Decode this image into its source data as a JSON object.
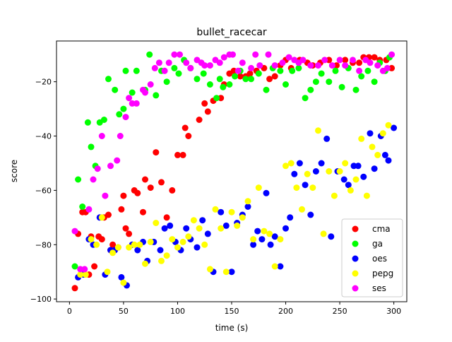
{
  "chart_data": {
    "type": "scatter",
    "title": "bullet_racecar",
    "xlabel": "time (s)",
    "ylabel": "score",
    "xlim": [
      -12,
      312
    ],
    "ylim": [
      -101,
      -5
    ],
    "xticks": [
      0,
      50,
      100,
      150,
      200,
      250,
      300
    ],
    "yticks": [
      -100,
      -80,
      -60,
      -40,
      -20
    ],
    "xtick_labels": [
      "0",
      "50",
      "100",
      "150",
      "200",
      "250",
      "300"
    ],
    "ytick_labels": [
      "−100",
      "−80",
      "−60",
      "−40",
      "−20"
    ],
    "legend_position": "lower-right",
    "series": [
      {
        "name": "cma",
        "color": "#ff0000",
        "points": [
          [
            5,
            -96
          ],
          [
            8,
            -76
          ],
          [
            12,
            -68
          ],
          [
            15,
            -68
          ],
          [
            18,
            -91
          ],
          [
            20,
            -77
          ],
          [
            23,
            -88
          ],
          [
            27,
            -77
          ],
          [
            30,
            -78
          ],
          [
            32,
            -70
          ],
          [
            36,
            -69
          ],
          [
            38,
            -82
          ],
          [
            40,
            -80
          ],
          [
            45,
            -81
          ],
          [
            48,
            -67
          ],
          [
            50,
            -62
          ],
          [
            52,
            -74
          ],
          [
            55,
            -76
          ],
          [
            60,
            -60
          ],
          [
            63,
            -61
          ],
          [
            68,
            -68
          ],
          [
            70,
            -56
          ],
          [
            75,
            -59
          ],
          [
            80,
            -46
          ],
          [
            85,
            -57
          ],
          [
            90,
            -70
          ],
          [
            95,
            -60
          ],
          [
            100,
            -47
          ],
          [
            105,
            -47
          ],
          [
            107,
            -37
          ],
          [
            110,
            -40
          ],
          [
            120,
            -34
          ],
          [
            125,
            -28
          ],
          [
            128,
            -31
          ],
          [
            133,
            -27
          ],
          [
            140,
            -26
          ],
          [
            143,
            -21
          ],
          [
            148,
            -17
          ],
          [
            152,
            -16
          ],
          [
            158,
            -18
          ],
          [
            163,
            -18
          ],
          [
            167,
            -17
          ],
          [
            173,
            -16
          ],
          [
            180,
            -15
          ],
          [
            185,
            -19
          ],
          [
            190,
            -18
          ],
          [
            195,
            -14
          ],
          [
            200,
            -12
          ],
          [
            205,
            -15
          ],
          [
            213,
            -12
          ],
          [
            220,
            -13
          ],
          [
            225,
            -14
          ],
          [
            232,
            -13
          ],
          [
            240,
            -12
          ],
          [
            247,
            -14
          ],
          [
            255,
            -12
          ],
          [
            262,
            -13
          ],
          [
            268,
            -13
          ],
          [
            272,
            -11
          ],
          [
            277,
            -11
          ],
          [
            282,
            -11
          ],
          [
            287,
            -12
          ],
          [
            293,
            -12
          ],
          [
            298,
            -15
          ]
        ]
      },
      {
        "name": "ga",
        "color": "#00ff00",
        "points": [
          [
            5,
            -88
          ],
          [
            8,
            -56
          ],
          [
            12,
            -66
          ],
          [
            17,
            -35
          ],
          [
            20,
            -44
          ],
          [
            24,
            -51
          ],
          [
            28,
            -35
          ],
          [
            32,
            -34
          ],
          [
            36,
            -19
          ],
          [
            42,
            -23
          ],
          [
            46,
            -32
          ],
          [
            50,
            -30
          ],
          [
            52,
            -16
          ],
          [
            58,
            -24
          ],
          [
            62,
            -16
          ],
          [
            70,
            -23
          ],
          [
            74,
            -10
          ],
          [
            80,
            -25
          ],
          [
            85,
            -16
          ],
          [
            90,
            -20
          ],
          [
            97,
            -15
          ],
          [
            101,
            -17
          ],
          [
            106,
            -12
          ],
          [
            112,
            -15
          ],
          [
            118,
            -19
          ],
          [
            124,
            -17
          ],
          [
            130,
            -21
          ],
          [
            136,
            -26
          ],
          [
            139,
            -19
          ],
          [
            142,
            -22
          ],
          [
            148,
            -21
          ],
          [
            153,
            -18
          ],
          [
            158,
            -16
          ],
          [
            163,
            -19
          ],
          [
            168,
            -19
          ],
          [
            175,
            -17
          ],
          [
            182,
            -23
          ],
          [
            188,
            -15
          ],
          [
            195,
            -16
          ],
          [
            200,
            -21
          ],
          [
            206,
            -16
          ],
          [
            212,
            -15
          ],
          [
            218,
            -26
          ],
          [
            223,
            -23
          ],
          [
            228,
            -20
          ],
          [
            233,
            -17
          ],
          [
            240,
            -20
          ],
          [
            246,
            -16
          ],
          [
            252,
            -22
          ],
          [
            258,
            -15
          ],
          [
            265,
            -23
          ],
          [
            270,
            -18
          ],
          [
            276,
            -16
          ],
          [
            282,
            -20
          ],
          [
            287,
            -13
          ],
          [
            292,
            -16
          ],
          [
            296,
            -11
          ]
        ]
      },
      {
        "name": "oes",
        "color": "#0000ff",
        "points": [
          [
            8,
            -92
          ],
          [
            13,
            -91
          ],
          [
            18,
            -78
          ],
          [
            22,
            -80
          ],
          [
            28,
            -70
          ],
          [
            33,
            -91
          ],
          [
            38,
            -82
          ],
          [
            42,
            -82
          ],
          [
            48,
            -92
          ],
          [
            53,
            -95
          ],
          [
            58,
            -80
          ],
          [
            63,
            -82
          ],
          [
            68,
            -79
          ],
          [
            72,
            -86
          ],
          [
            78,
            -79
          ],
          [
            84,
            -82
          ],
          [
            88,
            -74
          ],
          [
            93,
            -73
          ],
          [
            98,
            -79
          ],
          [
            103,
            -82
          ],
          [
            108,
            -74
          ],
          [
            112,
            -78
          ],
          [
            118,
            -81
          ],
          [
            123,
            -71
          ],
          [
            128,
            -76
          ],
          [
            133,
            -90
          ],
          [
            140,
            -68
          ],
          [
            145,
            -73
          ],
          [
            150,
            -90
          ],
          [
            155,
            -72
          ],
          [
            160,
            -69
          ],
          [
            165,
            -66
          ],
          [
            170,
            -80
          ],
          [
            174,
            -75
          ],
          [
            178,
            -78
          ],
          [
            182,
            -61
          ],
          [
            186,
            -80
          ],
          [
            190,
            -77
          ],
          [
            195,
            -88
          ],
          [
            200,
            -74
          ],
          [
            204,
            -70
          ],
          [
            208,
            -54
          ],
          [
            213,
            -50
          ],
          [
            218,
            -58
          ],
          [
            223,
            -69
          ],
          [
            228,
            -53
          ],
          [
            233,
            -50
          ],
          [
            238,
            -41
          ],
          [
            242,
            -77
          ],
          [
            248,
            -53
          ],
          [
            254,
            -56
          ],
          [
            258,
            -58
          ],
          [
            263,
            -51
          ],
          [
            267,
            -51
          ],
          [
            272,
            -55
          ],
          [
            278,
            -39
          ],
          [
            282,
            -52
          ],
          [
            288,
            -40
          ],
          [
            292,
            -47
          ],
          [
            295,
            -49
          ],
          [
            300,
            -37
          ]
        ]
      },
      {
        "name": "pepg",
        "color": "#ffff00",
        "points": [
          [
            10,
            -91
          ],
          [
            15,
            -91
          ],
          [
            20,
            -78
          ],
          [
            25,
            -80
          ],
          [
            30,
            -70
          ],
          [
            35,
            -90
          ],
          [
            40,
            -83
          ],
          [
            45,
            -81
          ],
          [
            50,
            -94
          ],
          [
            55,
            -81
          ],
          [
            60,
            -80
          ],
          [
            65,
            -80
          ],
          [
            70,
            -87
          ],
          [
            75,
            -79
          ],
          [
            80,
            -72
          ],
          [
            85,
            -86
          ],
          [
            90,
            -84
          ],
          [
            95,
            -78
          ],
          [
            100,
            -81
          ],
          [
            105,
            -79
          ],
          [
            110,
            -77
          ],
          [
            115,
            -71
          ],
          [
            120,
            -74
          ],
          [
            125,
            -80
          ],
          [
            130,
            -89
          ],
          [
            135,
            -67
          ],
          [
            140,
            -74
          ],
          [
            145,
            -90
          ],
          [
            150,
            -68
          ],
          [
            155,
            -73
          ],
          [
            160,
            -70
          ],
          [
            165,
            -64
          ],
          [
            170,
            -78
          ],
          [
            175,
            -59
          ],
          [
            180,
            -75
          ],
          [
            185,
            -76
          ],
          [
            190,
            -88
          ],
          [
            195,
            -78
          ],
          [
            200,
            -51
          ],
          [
            205,
            -50
          ],
          [
            210,
            -59
          ],
          [
            215,
            -67
          ],
          [
            220,
            -54
          ],
          [
            225,
            -59
          ],
          [
            230,
            -38
          ],
          [
            235,
            -76
          ],
          [
            240,
            -53
          ],
          [
            245,
            -62
          ],
          [
            250,
            -53
          ],
          [
            255,
            -50
          ],
          [
            260,
            -60
          ],
          [
            265,
            -56
          ],
          [
            270,
            -41
          ],
          [
            275,
            -62
          ],
          [
            280,
            -44
          ],
          [
            285,
            -47
          ],
          [
            290,
            -39
          ],
          [
            295,
            -36
          ]
        ]
      },
      {
        "name": "ses",
        "color": "#ff00ff",
        "points": [
          [
            5,
            -75
          ],
          [
            10,
            -89
          ],
          [
            14,
            -89
          ],
          [
            18,
            -67
          ],
          [
            22,
            -56
          ],
          [
            26,
            -52
          ],
          [
            30,
            -40
          ],
          [
            33,
            -62
          ],
          [
            38,
            -51
          ],
          [
            44,
            -49
          ],
          [
            47,
            -40
          ],
          [
            52,
            -33
          ],
          [
            55,
            -26
          ],
          [
            58,
            -28
          ],
          [
            62,
            -28
          ],
          [
            68,
            -23
          ],
          [
            70,
            -24
          ],
          [
            75,
            -21
          ],
          [
            79,
            -15
          ],
          [
            83,
            -13
          ],
          [
            88,
            -16
          ],
          [
            92,
            -13
          ],
          [
            97,
            -10
          ],
          [
            102,
            -10
          ],
          [
            108,
            -13
          ],
          [
            112,
            -15
          ],
          [
            118,
            -12
          ],
          [
            122,
            -13
          ],
          [
            125,
            -14
          ],
          [
            130,
            -14
          ],
          [
            135,
            -12
          ],
          [
            139,
            -13
          ],
          [
            143,
            -11
          ],
          [
            148,
            -10
          ],
          [
            151,
            -10
          ],
          [
            156,
            -16
          ],
          [
            160,
            -13
          ],
          [
            168,
            -15
          ],
          [
            172,
            -10
          ],
          [
            176,
            -14
          ],
          [
            184,
            -10
          ],
          [
            190,
            -14
          ],
          [
            197,
            -13
          ],
          [
            203,
            -11
          ],
          [
            208,
            -12
          ],
          [
            212,
            -13
          ],
          [
            216,
            -12
          ],
          [
            223,
            -14
          ],
          [
            230,
            -14
          ],
          [
            236,
            -12
          ],
          [
            243,
            -14
          ],
          [
            250,
            -12
          ],
          [
            255,
            -14
          ],
          [
            262,
            -12
          ],
          [
            268,
            -16
          ],
          [
            274,
            -12
          ],
          [
            278,
            -13
          ],
          [
            285,
            -14
          ],
          [
            290,
            -16
          ],
          [
            294,
            -15
          ],
          [
            298,
            -10
          ]
        ]
      }
    ]
  }
}
